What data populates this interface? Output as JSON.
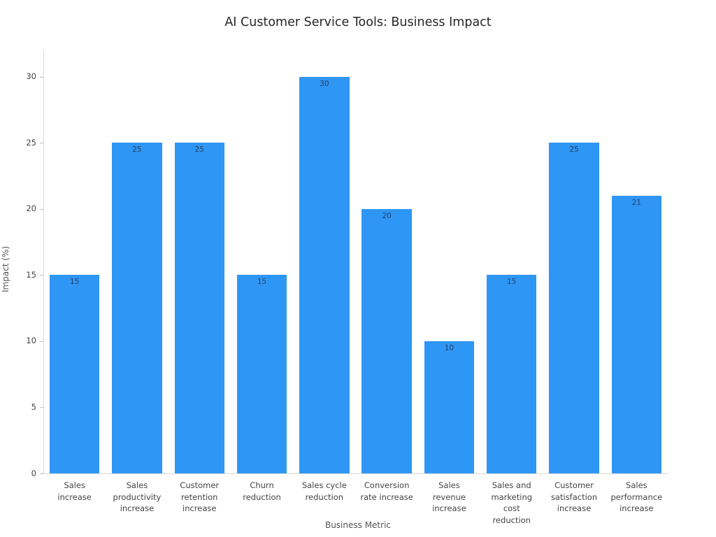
{
  "title": "AI Customer Service Tools: Business Impact",
  "chart_data": {
    "type": "bar",
    "title": "AI Customer Service Tools: Business Impact",
    "xlabel": "Business Metric",
    "ylabel": "Impact (%)",
    "categories": [
      "Sales increase",
      "Sales productivity increase",
      "Customer retention increase",
      "Churn reduction",
      "Sales cycle reduction",
      "Conversion rate increase",
      "Sales revenue increase",
      "Sales and marketing cost reduction",
      "Customer satisfaction increase",
      "Sales performance increase"
    ],
    "values": [
      15,
      25,
      25,
      15,
      30,
      20,
      10,
      15,
      25,
      21
    ],
    "ylim": [
      0,
      32
    ],
    "yticks": [
      0,
      5,
      10,
      15,
      20,
      25,
      30
    ],
    "bar_color": "#2E96F5",
    "value_label_color": "#2a3f5f",
    "grid": false,
    "legend": false,
    "value_label_position": "inside-top"
  }
}
